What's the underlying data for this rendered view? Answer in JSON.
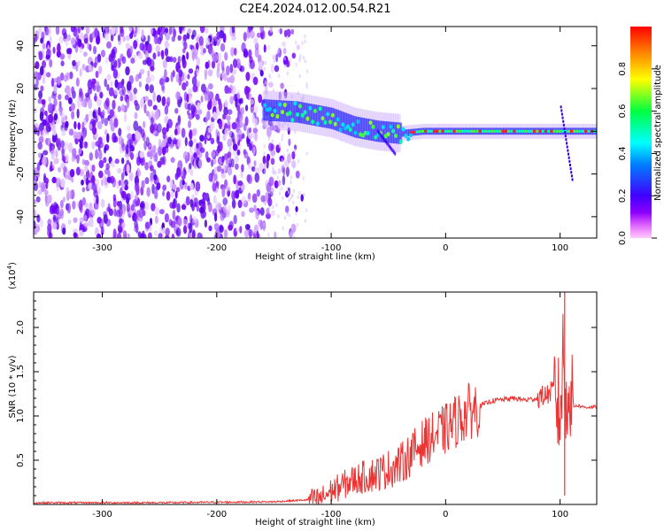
{
  "figure": {
    "title": "C2E4.2024.012.00.54.R21"
  },
  "chart_data": [
    {
      "type": "heatmap",
      "xlabel": "Height of straight line (km)",
      "ylabel": "Frequency (Hz)",
      "xlim": [
        -360,
        132
      ],
      "ylim": [
        -50,
        49
      ],
      "x_ticks": [
        -300,
        -200,
        -100,
        0,
        100
      ],
      "y_ticks": [
        -40,
        -20,
        0,
        20,
        40
      ],
      "grid": false,
      "colorbar": {
        "label": "Normalized spectral amplitude",
        "range": [
          0.0,
          1.0
        ],
        "ticks": [
          0.0,
          0.2,
          0.4,
          0.6,
          0.8
        ],
        "colormap": [
          "#ff0000",
          "#ff00ff",
          "#0000ff",
          "#00ffff",
          "#00ff00",
          "#ffff00",
          "#ff0000"
        ]
      },
      "features": {
        "broadband_noise_x_range": [
          -360,
          -150
        ],
        "signal_trace": [
          {
            "x": -160,
            "y": 10
          },
          {
            "x": -130,
            "y": 9
          },
          {
            "x": -100,
            "y": 6
          },
          {
            "x": -80,
            "y": 2
          },
          {
            "x": -60,
            "y": 0
          },
          {
            "x": -40,
            "y": -1
          },
          {
            "x": -20,
            "y": 0
          },
          {
            "x": 0,
            "y": 0
          },
          {
            "x": 50,
            "y": 0
          },
          {
            "x": 100,
            "y": 0
          },
          {
            "x": 132,
            "y": 0
          }
        ],
        "spike_x": 100
      }
    },
    {
      "type": "line",
      "xlabel": "Height of straight line (km)",
      "ylabel": "SNR (10 * v/v)",
      "y_multiplier": "(x10",
      "y_multiplier_exp": "4",
      "xlim": [
        -360,
        132
      ],
      "ylim": [
        0,
        2.4
      ],
      "x_ticks": [
        -300,
        -200,
        -100,
        0,
        100
      ],
      "y_ticks": [
        0.5,
        1.0,
        1.5,
        2.0
      ],
      "y_tick_labels": [
        "0.5",
        "1.0",
        "1.5",
        "2.0"
      ],
      "grid": false,
      "series": [
        {
          "color": "#ee3333",
          "x": [
            -360,
            -250,
            -150,
            -110,
            -100,
            -80,
            -60,
            -40,
            -20,
            0,
            20,
            40,
            60,
            70,
            80,
            90,
            95,
            100,
            103,
            105,
            107,
            110,
            115,
            120,
            132
          ],
          "y": [
            0.02,
            0.02,
            0.03,
            0.06,
            0.15,
            0.28,
            0.35,
            0.45,
            0.7,
            0.85,
            1.05,
            1.17,
            1.2,
            1.18,
            1.2,
            1.25,
            1.3,
            1.0,
            1.8,
            0.9,
            1.5,
            1.1,
            1.12,
            1.1,
            1.1
          ]
        }
      ]
    }
  ]
}
